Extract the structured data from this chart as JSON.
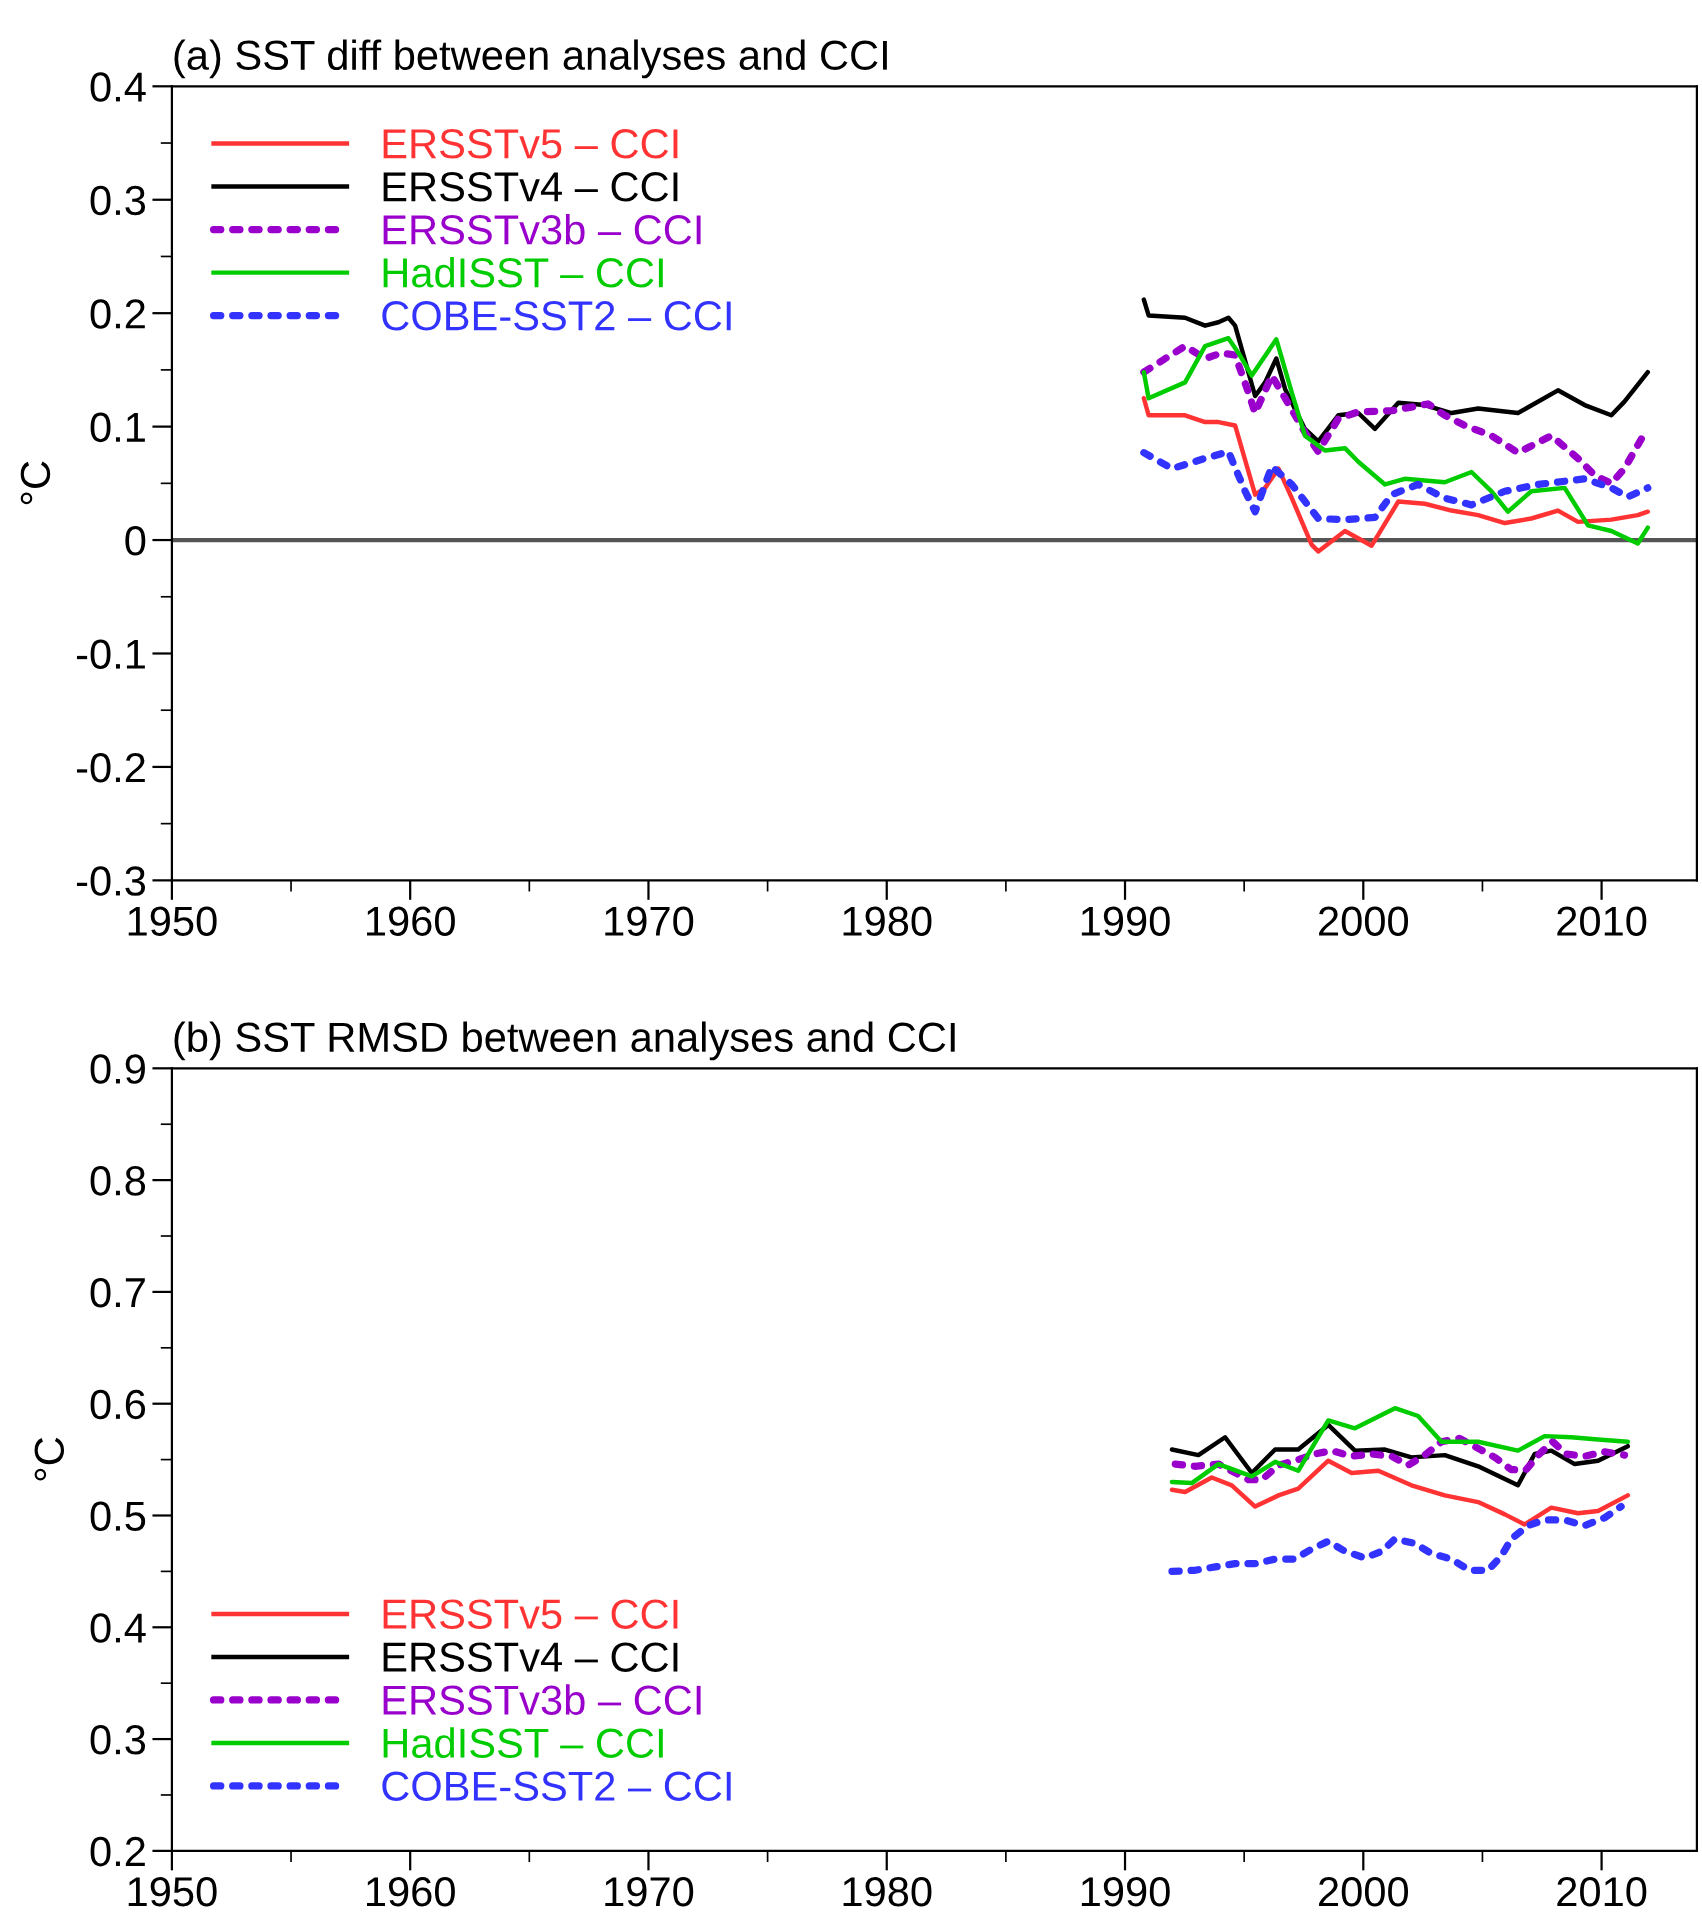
{
  "chart_data": [
    {
      "type": "line",
      "title": "(a) SST diff between analyses and CCI",
      "ylabel": "°C",
      "xlim": [
        1950,
        2014
      ],
      "ylim": [
        -0.3,
        0.4
      ],
      "xticks": [
        1950,
        {
          "value": 1955,
          "label": null
        },
        1960,
        {
          "value": 1965,
          "label": null
        },
        1970,
        {
          "value": 1975,
          "label": null
        },
        1980,
        {
          "value": 1985,
          "label": null
        },
        1990,
        {
          "value": 1995,
          "label": null
        },
        2000,
        {
          "value": 2005,
          "label": null
        },
        2010
      ],
      "yticks": [
        -0.3,
        {
          "value": -0.25,
          "label": null
        },
        -0.2,
        {
          "value": -0.15,
          "label": null
        },
        -0.1,
        {
          "value": -0.05,
          "label": null
        },
        0,
        {
          "value": 0.05,
          "label": null
        },
        0.1,
        {
          "value": 0.15,
          "label": null
        },
        0.2,
        {
          "value": 0.25,
          "label": null
        },
        0.3,
        {
          "value": 0.35,
          "label": null
        },
        0.4
      ],
      "grid": false,
      "legend": "top left",
      "ref_lines": [
        {
          "axis": "y",
          "value": 0,
          "color": "#555555"
        }
      ],
      "series": [
        {
          "name": "ERSSTv5 – CCI",
          "color": "#ff3333",
          "line_style": "solid",
          "x": [
            1990.79,
            1990.99,
            1992.52,
            1993.36,
            1993.92,
            1994.62,
            1995.46,
            1995.88,
            1996.44,
            1997.0,
            1997.83,
            1998.11,
            1999.23,
            2000.35,
            2001.47,
            2002.58,
            2003.7,
            2004.82,
            2005.94,
            2007.05,
            2008.17,
            2009.01,
            2010.41,
            2011.52,
            2011.94
          ],
          "values": [
            0.125,
            0.11,
            0.11,
            0.104,
            0.104,
            0.101,
            0.04,
            0.046,
            0.063,
            0.037,
            -0.004,
            -0.01,
            0.008,
            -0.005,
            0.034,
            0.032,
            0.026,
            0.022,
            0.015,
            0.019,
            0.026,
            0.016,
            0.018,
            0.022,
            0.025
          ]
        },
        {
          "name": "ERSSTv4 – CCI",
          "color": "#000000",
          "line_style": "solid",
          "x": [
            1990.79,
            1990.99,
            1992.52,
            1993.36,
            1993.92,
            1994.34,
            1994.62,
            1995.46,
            1995.88,
            1996.35,
            1996.72,
            1997.55,
            1998.11,
            1998.95,
            1999.79,
            2000.49,
            2001.47,
            2002.58,
            2003.7,
            2004.82,
            2006.49,
            2008.17,
            2009.29,
            2010.41,
            2010.96,
            2011.94
          ],
          "values": [
            0.212,
            0.198,
            0.196,
            0.189,
            0.192,
            0.196,
            0.189,
            0.127,
            0.139,
            0.16,
            0.133,
            0.098,
            0.087,
            0.11,
            0.112,
            0.098,
            0.121,
            0.119,
            0.112,
            0.116,
            0.112,
            0.132,
            0.119,
            0.11,
            0.122,
            0.148
          ]
        },
        {
          "name": "ERSSTv3b – CCI",
          "color": "#9900cc",
          "line_style": "dotted",
          "x": [
            1990.79,
            1992.52,
            1993.36,
            1994.06,
            1994.62,
            1995.18,
            1995.46,
            1996.16,
            1996.72,
            1997.55,
            1998.11,
            1998.95,
            1999.79,
            2001.19,
            2002.72,
            2003.42,
            2004.26,
            2005.38,
            2006.49,
            2007.89,
            2009.01,
            2009.71,
            2010.41,
            2010.96,
            2011.8
          ],
          "values": [
            0.148,
            0.171,
            0.16,
            0.165,
            0.163,
            0.13,
            0.112,
            0.145,
            0.125,
            0.095,
            0.078,
            0.107,
            0.113,
            0.114,
            0.12,
            0.11,
            0.101,
            0.092,
            0.077,
            0.092,
            0.072,
            0.057,
            0.05,
            0.063,
            0.094
          ]
        },
        {
          "name": "HadISST – CCI",
          "color": "#00cc00",
          "line_style": "solid",
          "x": [
            1990.79,
            1990.99,
            1992.52,
            1993.36,
            1994.34,
            1994.76,
            1995.32,
            1996.35,
            1997.0,
            1997.55,
            1998.39,
            1999.23,
            1999.79,
            2000.91,
            2001.74,
            2003.42,
            2004.54,
            2005.38,
            2006.07,
            2007.05,
            2008.45,
            2009.43,
            2010.41,
            2011.52,
            2011.94
          ],
          "values": [
            0.148,
            0.125,
            0.139,
            0.171,
            0.178,
            0.165,
            0.145,
            0.177,
            0.13,
            0.092,
            0.079,
            0.081,
            0.069,
            0.049,
            0.054,
            0.051,
            0.06,
            0.043,
            0.025,
            0.043,
            0.046,
            0.013,
            0.008,
            -0.003,
            0.011
          ]
        },
        {
          "name": "COBE-SST2 – CCI",
          "color": "#3333ff",
          "line_style": "dotted",
          "x": [
            1990.79,
            1991.97,
            1993.36,
            1994.34,
            1995.04,
            1995.46,
            1996.16,
            1997.0,
            1998.11,
            1999.23,
            2000.49,
            2001.19,
            2002.3,
            2003.42,
            2004.54,
            2005.94,
            2007.33,
            2009.29,
            2010.41,
            2011.1,
            2011.94
          ],
          "values": [
            0.077,
            0.063,
            0.072,
            0.078,
            0.043,
            0.025,
            0.065,
            0.049,
            0.019,
            0.018,
            0.02,
            0.04,
            0.049,
            0.037,
            0.031,
            0.043,
            0.049,
            0.054,
            0.046,
            0.038,
            0.046
          ]
        }
      ]
    },
    {
      "type": "line",
      "title": "(b) SST RMSD between analyses and CCI",
      "ylabel": "°C",
      "xlim": [
        1950,
        2014
      ],
      "ylim": [
        0.2,
        0.9
      ],
      "xticks": [
        1950,
        {
          "value": 1955,
          "label": null
        },
        1960,
        {
          "value": 1965,
          "label": null
        },
        1970,
        {
          "value": 1975,
          "label": null
        },
        1980,
        {
          "value": 1985,
          "label": null
        },
        1990,
        {
          "value": 1995,
          "label": null
        },
        2000,
        {
          "value": 2005,
          "label": null
        },
        2010
      ],
      "yticks": [
        0.2,
        {
          "value": 0.25,
          "label": null
        },
        0.3,
        {
          "value": 0.35,
          "label": null
        },
        0.4,
        {
          "value": 0.45,
          "label": null
        },
        0.5,
        {
          "value": 0.55,
          "label": null
        },
        0.6,
        {
          "value": 0.65,
          "label": null
        },
        0.7,
        {
          "value": 0.75,
          "label": null
        },
        0.8,
        {
          "value": 0.85,
          "label": null
        },
        0.9
      ],
      "grid": false,
      "legend": "bottom left",
      "series": [
        {
          "name": "ERSSTv5 – CCI",
          "color": "#ff3333",
          "line_style": "solid",
          "x": [
            1991.97,
            1992.52,
            1993.64,
            1994.48,
            1995.46,
            1996.44,
            1997.27,
            1998.53,
            1999.51,
            2000.63,
            2002.02,
            2003.42,
            2004.82,
            2005.94,
            2006.77,
            2007.89,
            2009.01,
            2009.85,
            2011.1
          ],
          "values": [
            0.523,
            0.521,
            0.534,
            0.527,
            0.508,
            0.518,
            0.524,
            0.549,
            0.538,
            0.54,
            0.527,
            0.518,
            0.512,
            0.501,
            0.492,
            0.507,
            0.502,
            0.504,
            0.518
          ]
        },
        {
          "name": "ERSSTv4 – CCI",
          "color": "#000000",
          "line_style": "solid",
          "x": [
            1991.97,
            1993.08,
            1994.2,
            1995.32,
            1996.3,
            1997.27,
            1998.53,
            1999.65,
            2000.91,
            2002.02,
            2003.42,
            2004.82,
            2006.49,
            2007.19,
            2007.89,
            2008.87,
            2009.85,
            2011.1
          ],
          "values": [
            0.559,
            0.554,
            0.57,
            0.538,
            0.559,
            0.559,
            0.581,
            0.558,
            0.559,
            0.552,
            0.554,
            0.544,
            0.527,
            0.555,
            0.558,
            0.546,
            0.549,
            0.562
          ]
        },
        {
          "name": "ERSSTv3b – CCI",
          "color": "#9900cc",
          "line_style": "dotted",
          "x": [
            1992.11,
            1992.94,
            1993.92,
            1995.18,
            1995.74,
            1996.44,
            1997.13,
            1997.97,
            1998.67,
            1999.51,
            2000.35,
            2001.19,
            2001.88,
            2002.58,
            2003.28,
            2004.04,
            2004.82,
            2005.52,
            2006.21,
            2006.83,
            2007.39,
            2007.95,
            2008.51,
            2009.29,
            2010.13,
            2010.96
          ],
          "values": [
            0.546,
            0.544,
            0.546,
            0.532,
            0.532,
            0.545,
            0.549,
            0.555,
            0.558,
            0.553,
            0.555,
            0.553,
            0.545,
            0.554,
            0.566,
            0.569,
            0.56,
            0.552,
            0.541,
            0.541,
            0.555,
            0.566,
            0.555,
            0.553,
            0.557,
            0.554
          ]
        },
        {
          "name": "HadISST – CCI",
          "color": "#00cc00",
          "line_style": "solid",
          "x": [
            1991.97,
            1992.8,
            1993.92,
            1995.32,
            1996.3,
            1997.27,
            1998.53,
            1999.65,
            2001.33,
            2002.3,
            2003.28,
            2004.82,
            2006.49,
            2007.61,
            2008.73,
            2009.85,
            2011.1
          ],
          "values": [
            0.53,
            0.529,
            0.546,
            0.535,
            0.548,
            0.54,
            0.585,
            0.578,
            0.596,
            0.589,
            0.566,
            0.566,
            0.558,
            0.571,
            0.57,
            0.568,
            0.566
          ]
        },
        {
          "name": "COBE-SST2 – CCI",
          "color": "#3333ff",
          "line_style": "dotted",
          "x": [
            1991.97,
            1992.94,
            1993.78,
            1994.62,
            1995.46,
            1996.3,
            1997.13,
            1997.83,
            1998.53,
            1999.23,
            2000.07,
            2000.77,
            2001.33,
            2002.16,
            2002.86,
            2003.7,
            2004.45,
            2005.24,
            2005.8,
            2006.21,
            2006.91,
            2007.61,
            2008.45,
            2009.29,
            2010.13,
            2010.82
          ],
          "values": [
            0.45,
            0.451,
            0.454,
            0.457,
            0.457,
            0.461,
            0.461,
            0.47,
            0.477,
            0.468,
            0.462,
            0.468,
            0.479,
            0.475,
            0.466,
            0.461,
            0.451,
            0.451,
            0.464,
            0.479,
            0.491,
            0.496,
            0.496,
            0.491,
            0.498,
            0.508
          ]
        }
      ]
    }
  ]
}
